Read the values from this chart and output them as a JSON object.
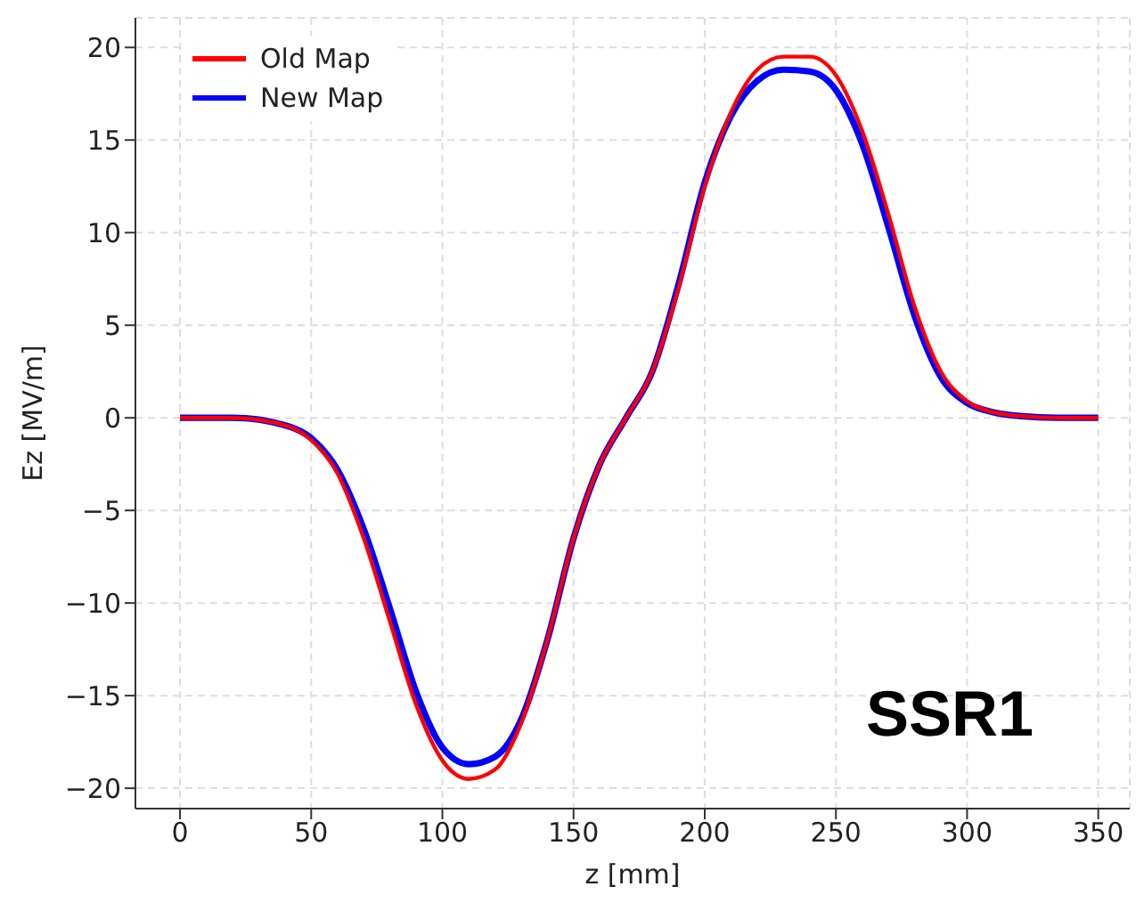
{
  "chart_data": {
    "type": "line",
    "xlabel": "z [mm]",
    "ylabel": "Ez [MV/m]",
    "annotations": [
      "SSR1"
    ],
    "xlim": [
      -17,
      362
    ],
    "xticks": [
      0,
      50,
      100,
      150,
      200,
      250,
      300,
      350
    ],
    "ylim": [
      -21.1,
      21.6
    ],
    "yticks": [
      -20,
      -15,
      -10,
      -5,
      0,
      5,
      10,
      15,
      20
    ],
    "grid": true,
    "legend": "top left",
    "marker": "none",
    "line_style": "solid",
    "series": [
      {
        "name": "Old Map",
        "color": "#ff0000",
        "x": [
          0,
          20,
          40,
          50,
          60,
          70,
          80,
          90,
          100,
          110,
          120,
          130,
          140,
          150,
          160,
          170,
          180,
          190,
          200,
          210,
          220,
          230,
          240,
          250,
          260,
          270,
          280,
          290,
          300,
          310,
          320,
          335,
          350
        ],
        "values": [
          0,
          0,
          -0.4,
          -1.2,
          -3,
          -6.5,
          -11,
          -15.5,
          -18.5,
          -19.5,
          -19,
          -16.5,
          -12,
          -6.5,
          -2.5,
          0,
          2.5,
          7,
          12.5,
          16.5,
          18.8,
          19.5,
          19.5,
          18.5,
          15.5,
          11,
          6,
          2.5,
          0.9,
          0.3,
          0.1,
          0,
          0
        ]
      },
      {
        "name": "New Map",
        "color": "#0000ff",
        "x": [
          0,
          20,
          40,
          50,
          60,
          70,
          80,
          90,
          100,
          110,
          120,
          130,
          140,
          150,
          160,
          170,
          180,
          190,
          200,
          210,
          220,
          230,
          240,
          250,
          260,
          270,
          280,
          290,
          300,
          310,
          320,
          335,
          350
        ],
        "values": [
          0,
          0,
          -0.4,
          -1.1,
          -2.8,
          -6,
          -10.3,
          -14.8,
          -17.8,
          -18.7,
          -18.3,
          -16.3,
          -12,
          -6.5,
          -2.5,
          0,
          2.5,
          7.2,
          12.7,
          16.3,
          18.2,
          18.8,
          18.7,
          17.7,
          14.8,
          10.3,
          5.5,
          2.2,
          0.8,
          0.3,
          0.1,
          0,
          0
        ]
      }
    ]
  }
}
